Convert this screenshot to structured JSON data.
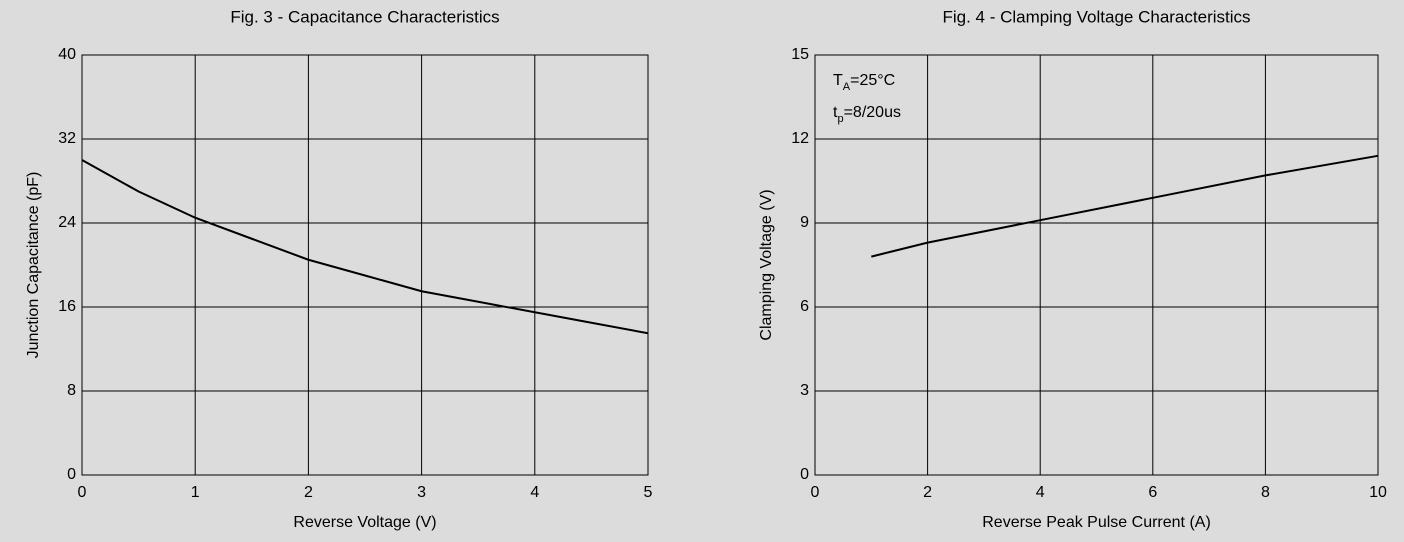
{
  "chart_data": [
    {
      "type": "line",
      "title": "Fig. 3 - Capacitance Characteristics",
      "x_label": "Reverse Voltage (V)",
      "y_label": "Junction Capacitance (pF)",
      "x": [
        0,
        0.5,
        1,
        1.5,
        2,
        2.5,
        3,
        3.5,
        4,
        4.5,
        5
      ],
      "series": [
        {
          "name": "Capacitance",
          "color": "#000000",
          "values": [
            30,
            27,
            24.5,
            22.5,
            20.5,
            19,
            17.5,
            16.5,
            15.5,
            14.5,
            13.5
          ]
        }
      ],
      "xlim": [
        0,
        5
      ],
      "xticks": [
        0,
        1,
        2,
        3,
        4,
        5
      ],
      "ylim": [
        0,
        40
      ],
      "yticks": [
        0,
        8,
        16,
        24,
        32,
        40
      ],
      "grid": true
    },
    {
      "type": "line",
      "title": "Fig. 4 - Clamping Voltage Characteristics",
      "x_label": "Reverse Peak Pulse Current (A)",
      "y_label": "Clamping Voltage (V)",
      "annotations": [
        {
          "main": "T",
          "sub": "A",
          "rest": "=25°C"
        },
        {
          "main": "t",
          "sub": "p",
          "rest": "=8/20us"
        }
      ],
      "x": [
        1,
        2,
        4,
        6,
        8,
        10
      ],
      "series": [
        {
          "name": "Clamping Voltage",
          "color": "#000000",
          "values": [
            7.8,
            8.3,
            9.1,
            9.9,
            10.7,
            11.4
          ]
        }
      ],
      "xlim": [
        0,
        10
      ],
      "xticks": [
        0,
        2,
        4,
        6,
        8,
        10
      ],
      "ylim": [
        0,
        15
      ],
      "yticks": [
        0,
        3,
        6,
        9,
        12,
        15
      ],
      "grid": true
    }
  ]
}
